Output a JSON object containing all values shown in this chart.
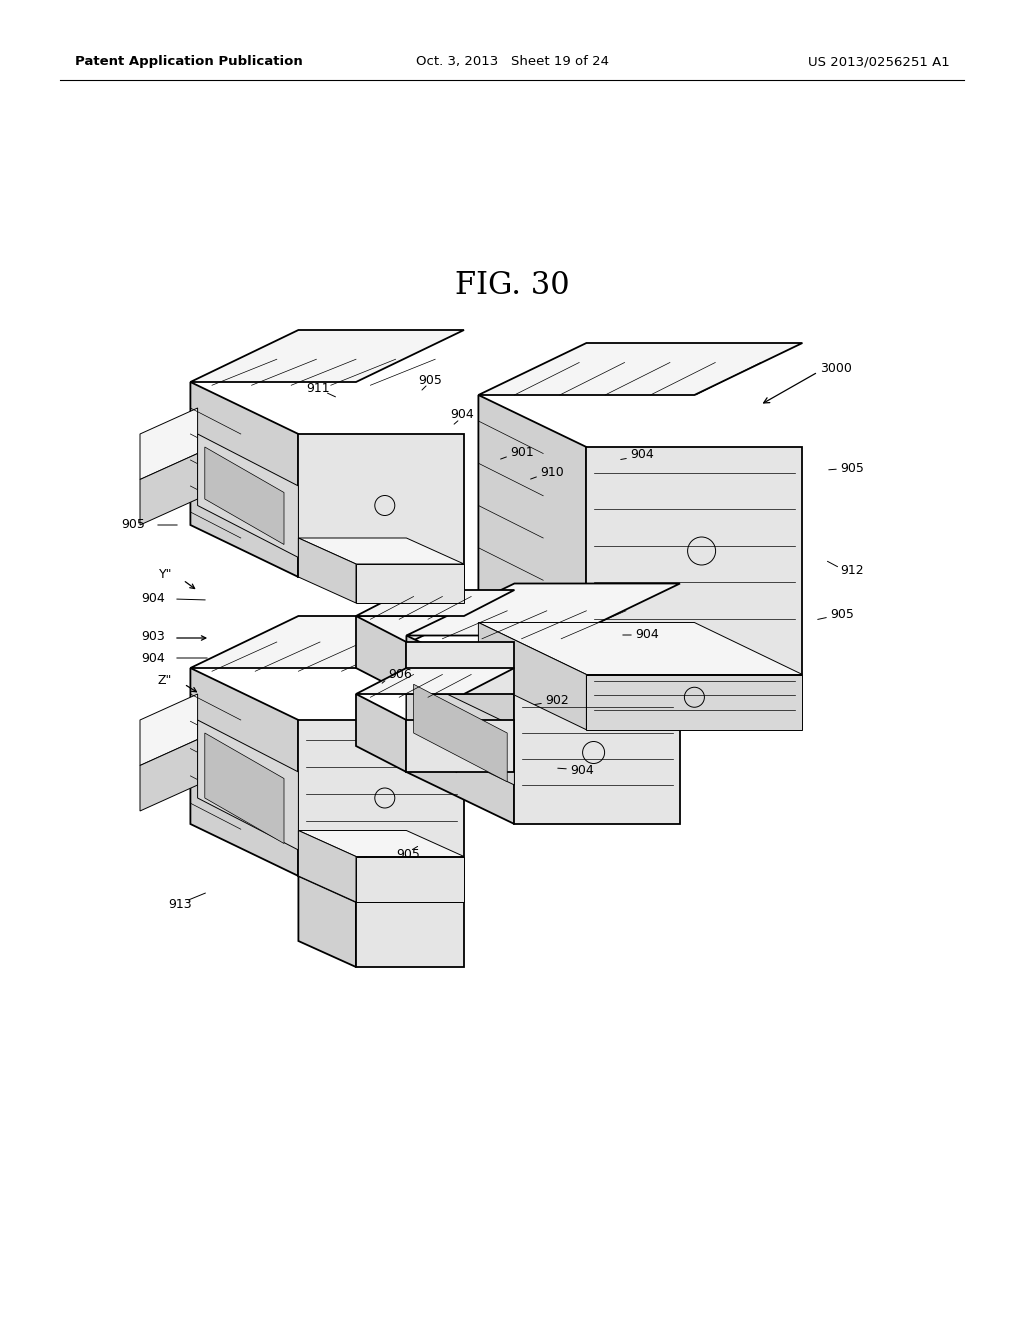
{
  "background_color": "#ffffff",
  "line_color": "#000000",
  "fig_label": "FIG. 30",
  "header_left": "Patent Application Publication",
  "header_center": "Oct. 3, 2013   Sheet 19 of 24",
  "header_right": "US 2013/0256251 A1",
  "header_fontsize": 9.5,
  "title_fontsize": 22,
  "ref_fontsize": 9,
  "fig_width": 10.24,
  "fig_height": 13.2,
  "dpi": 100
}
